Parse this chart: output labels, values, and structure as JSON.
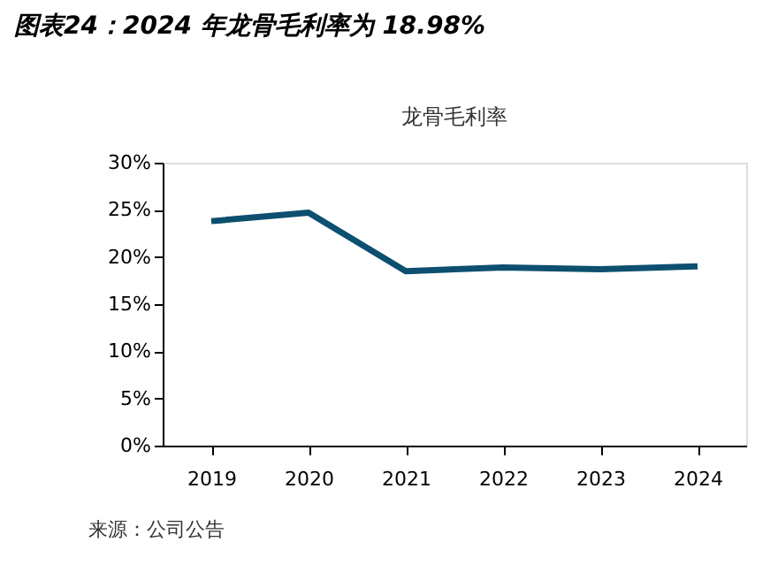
{
  "chart_data": {
    "type": "line",
    "title": "图表24：2024 年龙骨毛利率为 18.98%",
    "categories": [
      "2019",
      "2020",
      "2021",
      "2022",
      "2023",
      "2024"
    ],
    "series": [
      {
        "name": "龙骨毛利率",
        "color": "#0d4f6f",
        "values": [
          23.8,
          24.7,
          18.5,
          18.9,
          18.7,
          19.0
        ]
      }
    ],
    "ylim": [
      0,
      30
    ],
    "yticks": [
      {
        "value": 0,
        "label": "0%"
      },
      {
        "value": 5,
        "label": "5%"
      },
      {
        "value": 10,
        "label": "10%"
      },
      {
        "value": 15,
        "label": "15%"
      },
      {
        "value": 20,
        "label": "20%"
      },
      {
        "value": 25,
        "label": "25%"
      },
      {
        "value": 30,
        "label": "30%"
      }
    ],
    "grid": false,
    "marker": "none",
    "line_style": "solid",
    "legend": "top",
    "annotations": [
      "来源：公司公告"
    ]
  }
}
